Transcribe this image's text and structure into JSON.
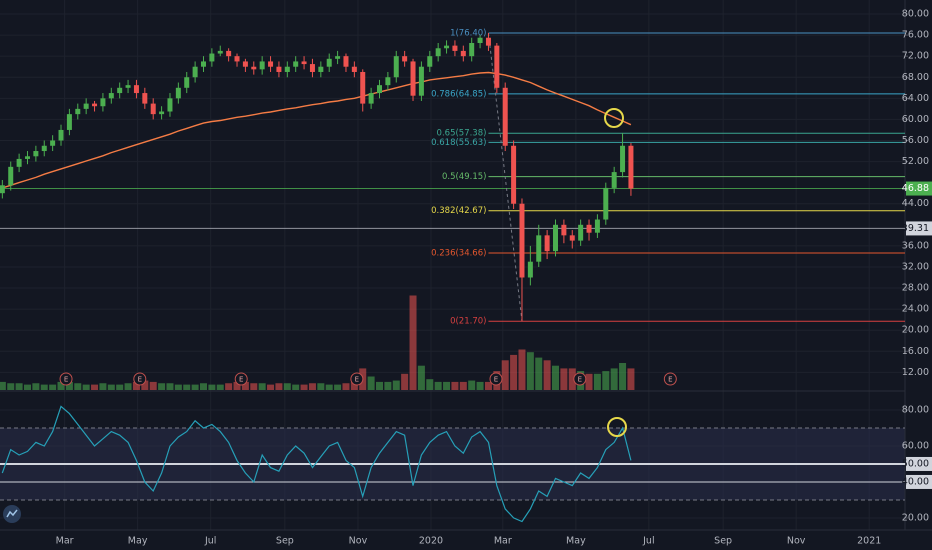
{
  "chart_data": {
    "type": "candlestick",
    "x": [
      1,
      2,
      3,
      4,
      5,
      6,
      7,
      8,
      9,
      10,
      11,
      12,
      13,
      14,
      15,
      16,
      17,
      18,
      19,
      20,
      21,
      22,
      23,
      24,
      25,
      26,
      27,
      28,
      29,
      30,
      31,
      32,
      33,
      34,
      35,
      36,
      37,
      38,
      39,
      40,
      41,
      42,
      43,
      44,
      45,
      46,
      47,
      48,
      49,
      50,
      51,
      52,
      53,
      54,
      55,
      56,
      57,
      58,
      59,
      60,
      61,
      62,
      63,
      64,
      65,
      66,
      67,
      68,
      69,
      70,
      71,
      72,
      73,
      74,
      75,
      76
    ],
    "xlim": [
      0.72,
      108.7
    ],
    "xticks": [
      {
        "value": 8.43,
        "label": "Mar"
      },
      {
        "value": 17.14,
        "label": "May"
      },
      {
        "value": 25.86,
        "label": "Jul"
      },
      {
        "value": 34.71,
        "label": "Sep"
      },
      {
        "value": 43.43,
        "label": "Nov"
      },
      {
        "value": 52.14,
        "label": "2020"
      },
      {
        "value": 60.71,
        "label": "Mar"
      },
      {
        "value": 69.43,
        "label": "May"
      },
      {
        "value": 78.14,
        "label": "Jul"
      },
      {
        "value": 87,
        "label": "Sep"
      },
      {
        "value": 95.71,
        "label": "Nov"
      },
      {
        "value": 104.43,
        "label": "2021"
      }
    ],
    "ylim": [
      8.65,
      82.66
    ],
    "yticks": [
      {
        "value": 80,
        "label": "80.00"
      },
      {
        "value": 76,
        "label": "76.00"
      },
      {
        "value": 72,
        "label": "72.00"
      },
      {
        "value": 68,
        "label": "68.00"
      },
      {
        "value": 64,
        "label": "64.00"
      },
      {
        "value": 60,
        "label": "60.00"
      },
      {
        "value": 56,
        "label": "56.00"
      },
      {
        "value": 52,
        "label": "52.00"
      },
      {
        "value": 44,
        "label": "44.00"
      },
      {
        "value": 36,
        "label": "36.00"
      },
      {
        "value": 32,
        "label": "32.00"
      },
      {
        "value": 28,
        "label": "28.00"
      },
      {
        "value": 24,
        "label": "24.00"
      },
      {
        "value": 20,
        "label": "20.00"
      },
      {
        "value": 16,
        "label": "16.00"
      },
      {
        "value": 12,
        "label": "12.00"
      }
    ],
    "up_color": "#4caf50",
    "down_color": "#ef5350",
    "grid": true,
    "ohlc": {
      "open": [
        46,
        47.5,
        51,
        52.5,
        53,
        54,
        55,
        56,
        58,
        61,
        62,
        63,
        62.5,
        64,
        65,
        66,
        66.5,
        65,
        63,
        61,
        61.5,
        64,
        66,
        68,
        70,
        71,
        72.5,
        73,
        72,
        71,
        70,
        69.5,
        71,
        70,
        69,
        70,
        71,
        70.5,
        69,
        70,
        71.5,
        72,
        70,
        69,
        63,
        65,
        66.5,
        68,
        72,
        71,
        64.5,
        70,
        72,
        73.5,
        74,
        73,
        72,
        74.5,
        75.5,
        74,
        66,
        55,
        44,
        30,
        33,
        38,
        35,
        40,
        38,
        37,
        40,
        38.5,
        41,
        47,
        50,
        55
      ],
      "high": [
        48.5,
        52,
        53.5,
        54,
        55,
        56,
        57,
        59,
        62,
        63,
        64,
        63.5,
        65,
        66,
        67,
        67.5,
        67.5,
        66,
        64,
        62.5,
        65,
        67,
        69,
        71,
        72,
        73.5,
        74,
        73.5,
        72.5,
        71.5,
        71,
        72,
        72,
        71,
        71,
        72,
        72,
        71.5,
        71,
        72.5,
        73,
        72.5,
        71,
        69.5,
        66,
        67.5,
        69,
        73,
        73,
        71.5,
        71,
        73,
        74.5,
        75,
        75,
        74,
        75.5,
        76,
        76.4,
        74.5,
        67,
        56,
        45,
        36,
        40,
        39,
        41,
        41,
        39,
        41,
        41,
        42,
        48,
        51,
        57.38,
        55.5
      ],
      "low": [
        45,
        46.5,
        50,
        51.5,
        52,
        53,
        54,
        55,
        57,
        60,
        61,
        61.5,
        61.5,
        63,
        64,
        65,
        64,
        62,
        60,
        60,
        60.5,
        63,
        65,
        67,
        69,
        70,
        72,
        71,
        70,
        69,
        68.5,
        68.5,
        69,
        68,
        68,
        69,
        69.5,
        68,
        68,
        69,
        70.5,
        69,
        68,
        61.5,
        62,
        64,
        65.5,
        67,
        70,
        63.5,
        63.5,
        69,
        71,
        72.5,
        72,
        71,
        71,
        73.5,
        73,
        65,
        54,
        43,
        21.7,
        28.5,
        32,
        33.5,
        34,
        36.5,
        35.5,
        36,
        37,
        37.5,
        40,
        46,
        49,
        45.5
      ],
      "close": [
        47.5,
        51,
        52.5,
        53,
        54,
        55,
        56,
        58,
        61,
        62,
        63,
        62.5,
        64,
        65,
        66,
        66.5,
        65,
        63,
        61,
        61.5,
        64,
        66,
        68,
        70,
        71,
        72.5,
        73,
        72,
        71,
        70,
        69.5,
        71,
        70,
        69,
        70,
        71,
        70.5,
        69,
        70,
        71.5,
        72,
        70,
        69,
        63,
        65,
        66.5,
        68,
        72,
        71,
        64.5,
        70,
        72,
        73.5,
        74,
        73,
        72,
        74.5,
        75.5,
        74,
        66,
        55,
        44,
        30,
        33,
        38,
        35,
        40,
        38,
        37,
        40,
        38.5,
        41,
        47,
        50,
        55,
        46.88
      ]
    },
    "volume": [
      3,
      2.5,
      2.5,
      2,
      2.5,
      2,
      2,
      3,
      3,
      2.5,
      2,
      2,
      2.5,
      2,
      2,
      2.5,
      3,
      3.5,
      3,
      2.5,
      2.5,
      2,
      2,
      2,
      2.5,
      2,
      2,
      2.5,
      3,
      3,
      2.5,
      2.5,
      2,
      2.5,
      2.5,
      2,
      2,
      2.5,
      2.5,
      2,
      2,
      2.5,
      3,
      8,
      5,
      3,
      3,
      3.5,
      6,
      35,
      9,
      4,
      3,
      3,
      3,
      3,
      3.5,
      3,
      3,
      7,
      11,
      13,
      15,
      14,
      12,
      11,
      9,
      8,
      8,
      7,
      6,
      6,
      7,
      8,
      10,
      8
    ],
    "ma": {
      "color": "#f57c45",
      "values": [
        47,
        47.5,
        48,
        48.5,
        49,
        49.6,
        50.1,
        50.6,
        51.1,
        51.6,
        52.1,
        52.6,
        53.1,
        53.7,
        54.2,
        54.7,
        55.2,
        55.7,
        56.2,
        56.7,
        57.2,
        57.8,
        58.3,
        58.8,
        59.3,
        59.6,
        59.8,
        60.1,
        60.4,
        60.6,
        60.9,
        61.2,
        61.4,
        61.7,
        62,
        62.2,
        62.5,
        62.8,
        63,
        63.3,
        63.5,
        63.8,
        64,
        64.4,
        64.8,
        65.2,
        65.6,
        66,
        66.4,
        66.8,
        67.1,
        67.5,
        67.7,
        67.9,
        68.1,
        68.3,
        68.6,
        68.8,
        68.9,
        68.7,
        68.4,
        68,
        67.5,
        67,
        66.3,
        65.6,
        65,
        64.4,
        63.8,
        63.2,
        62.6,
        61.8,
        61.1,
        60.4,
        59.7,
        59
      ]
    },
    "fib": {
      "anchors": {
        "from": 59,
        "to": 63,
        "from_price": 76.4,
        "to_price": 21.7
      },
      "levels": [
        {
          "label": "1(76.40)",
          "price": 76.4,
          "color": "#4a90c2"
        },
        {
          "label": "0.786(64.85)",
          "price": 64.85,
          "color": "#3aa6c8"
        },
        {
          "label": "0.65(57.38)",
          "price": 57.38,
          "color": "#3ba58f"
        },
        {
          "label": "0.618(55.63)",
          "price": 55.63,
          "color": "#3aa6a6"
        },
        {
          "label": "0.5(49.15)",
          "price": 49.15,
          "color": "#66bb6a"
        },
        {
          "label": "0.382(42.67)",
          "price": 42.67,
          "color": "#e6d84a"
        },
        {
          "label": "0.236(34.66)",
          "price": 34.66,
          "color": "#e4572e"
        },
        {
          "label": "0(21.70)",
          "price": 21.7,
          "color": "#d84040"
        }
      ]
    },
    "price_lines": [
      {
        "value": 46.88,
        "color": "#4caf50"
      },
      {
        "value": 39.31,
        "color": "#b2b5be"
      }
    ],
    "earnings": {
      "label": "E",
      "x": [
        8.6,
        17.4,
        29.5,
        43.3,
        59.9,
        69.9,
        80.7
      ]
    },
    "rsi": {
      "color": "#26a0b8",
      "ylim": [
        13.3,
        90
      ],
      "yticks": [
        {
          "value": 80,
          "label": "80.00"
        },
        {
          "value": 60,
          "label": "60.00"
        },
        {
          "value": 50,
          "label": "50.00"
        },
        {
          "value": 40,
          "label": "40.00"
        },
        {
          "value": 20,
          "label": "20.00"
        }
      ],
      "bands": [
        30,
        70
      ],
      "levels": [
        50,
        40
      ],
      "values": [
        45,
        58,
        55,
        57,
        62,
        60,
        68,
        82,
        78,
        72,
        66,
        60,
        64,
        68,
        66,
        62,
        52,
        40,
        35,
        45,
        60,
        65,
        68,
        74,
        70,
        72,
        68,
        62,
        52,
        45,
        40,
        55,
        48,
        46,
        55,
        60,
        56,
        48,
        54,
        60,
        62,
        52,
        48,
        32,
        48,
        56,
        62,
        68,
        66,
        38,
        55,
        62,
        66,
        68,
        60,
        56,
        65,
        68,
        62,
        38,
        25,
        20,
        18,
        25,
        35,
        32,
        42,
        40,
        38,
        45,
        42,
        48,
        58,
        62,
        70,
        52
      ]
    }
  }
}
